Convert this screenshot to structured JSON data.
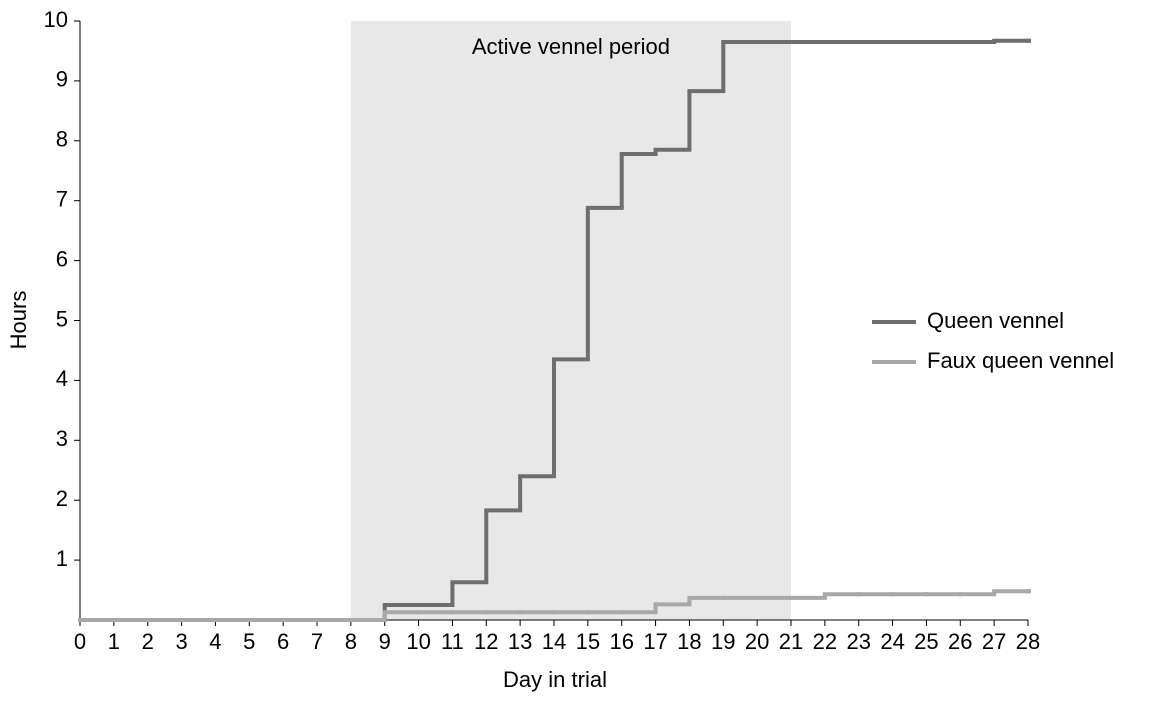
{
  "chart_data": {
    "type": "line",
    "step": "post",
    "xlabel": "Day in trial",
    "ylabel": "Hours",
    "x": [
      0,
      1,
      2,
      3,
      4,
      5,
      6,
      7,
      8,
      9,
      10,
      11,
      12,
      13,
      14,
      15,
      16,
      17,
      18,
      19,
      20,
      21,
      22,
      23,
      24,
      25,
      26,
      27,
      28
    ],
    "series": [
      {
        "name": "Queen vennel",
        "color": "#6e6e6e",
        "values": [
          0,
          0,
          0,
          0,
          0,
          0,
          0,
          0,
          0,
          0.25,
          0.25,
          0.63,
          1.83,
          2.4,
          4.35,
          6.88,
          7.78,
          7.85,
          8.83,
          9.65,
          9.65,
          9.65,
          9.65,
          9.65,
          9.65,
          9.65,
          9.65,
          9.67,
          9.67
        ]
      },
      {
        "name": "Faux queen vennel",
        "color": "#a8a8a8",
        "values": [
          0,
          0,
          0,
          0,
          0,
          0,
          0,
          0,
          0,
          0.13,
          0.13,
          0.13,
          0.13,
          0.13,
          0.13,
          0.13,
          0.13,
          0.26,
          0.37,
          0.37,
          0.37,
          0.37,
          0.43,
          0.43,
          0.43,
          0.43,
          0.43,
          0.48,
          0.48
        ]
      }
    ],
    "shade": {
      "from": 8,
      "to": 21,
      "label": "Active vennel period",
      "color": "#e8e8e8"
    },
    "xlim": [
      0,
      28
    ],
    "xticks": [
      0,
      1,
      2,
      3,
      4,
      5,
      6,
      7,
      8,
      9,
      10,
      11,
      12,
      13,
      14,
      15,
      16,
      17,
      18,
      19,
      20,
      21,
      22,
      23,
      24,
      25,
      26,
      27,
      28
    ],
    "ylim": [
      0,
      10
    ],
    "yticks": [
      1,
      2,
      3,
      4,
      5,
      6,
      7,
      8,
      9,
      10
    ],
    "legend": "right"
  }
}
